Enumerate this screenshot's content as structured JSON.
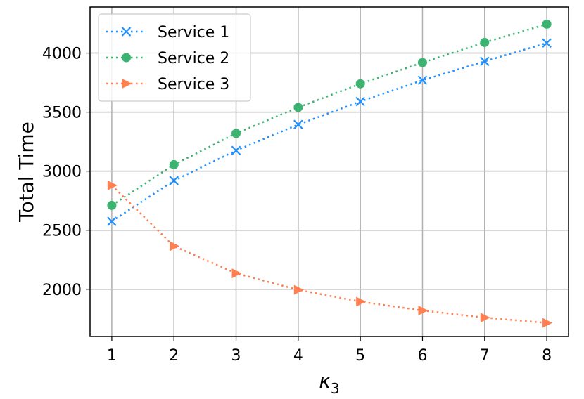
{
  "chart_data": {
    "type": "line",
    "x": [
      1,
      2,
      3,
      4,
      5,
      6,
      7,
      8
    ],
    "xlabel_base": "κ",
    "xlabel_sub": "3",
    "ylabel": "Total Time",
    "xlim": [
      0.65,
      8.35
    ],
    "ylim": [
      1600,
      4390
    ],
    "xticks": [
      1,
      2,
      3,
      4,
      5,
      6,
      7,
      8
    ],
    "yticks": [
      2000,
      2500,
      3000,
      3500,
      4000
    ],
    "grid": true,
    "legend_position": "top-left",
    "series": [
      {
        "name": "Service 1",
        "color": "#1e90ff",
        "marker": "x",
        "values": [
          2575,
          2920,
          3175,
          3395,
          3590,
          3770,
          3930,
          4085
        ]
      },
      {
        "name": "Service 2",
        "color": "#3cb371",
        "marker": "circle",
        "values": [
          2710,
          3055,
          3320,
          3540,
          3740,
          3920,
          4090,
          4245
        ]
      },
      {
        "name": "Service 3",
        "color": "#ff7f50",
        "marker": "triangle-right",
        "values": [
          2880,
          2365,
          2135,
          1995,
          1895,
          1820,
          1760,
          1715
        ]
      }
    ]
  }
}
